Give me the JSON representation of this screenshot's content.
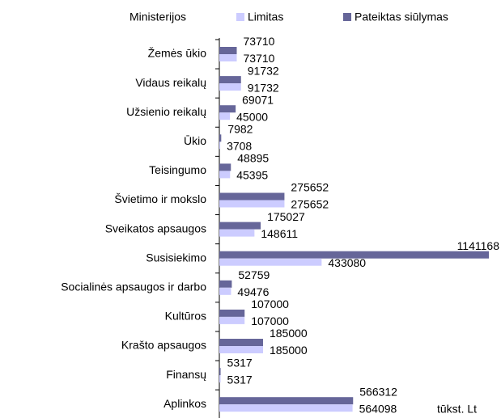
{
  "chart_data": {
    "type": "barh",
    "y_label": "Ministerijos",
    "unit_label": "tūkst. Lt",
    "categories": [
      "Žemės ūkio",
      "Vidaus reikalų",
      "Užsienio reikalų",
      "Ūkio",
      "Teisingumo",
      "Švietimo ir mokslo",
      "Sveikatos apsaugos",
      "Susisiekimo",
      "Socialinės apsaugos ir darbo",
      "Kultūros",
      "Krašto apsaugos",
      "Finansų",
      "Aplinkos"
    ],
    "series": [
      {
        "name": "Limitas",
        "color": "#ccccff",
        "values": [
          73710,
          91732,
          45000,
          3708,
          45395,
          275652,
          148611,
          433080,
          49476,
          107000,
          185000,
          5317,
          564098
        ]
      },
      {
        "name": "Pateiktas siūlymas",
        "color": "#666699",
        "values": [
          73710,
          91732,
          69071,
          7982,
          48895,
          275652,
          175027,
          1141168,
          52759,
          107000,
          185000,
          5317,
          566312
        ]
      }
    ],
    "xlim": [
      0,
      1141168
    ],
    "legend": "top"
  }
}
